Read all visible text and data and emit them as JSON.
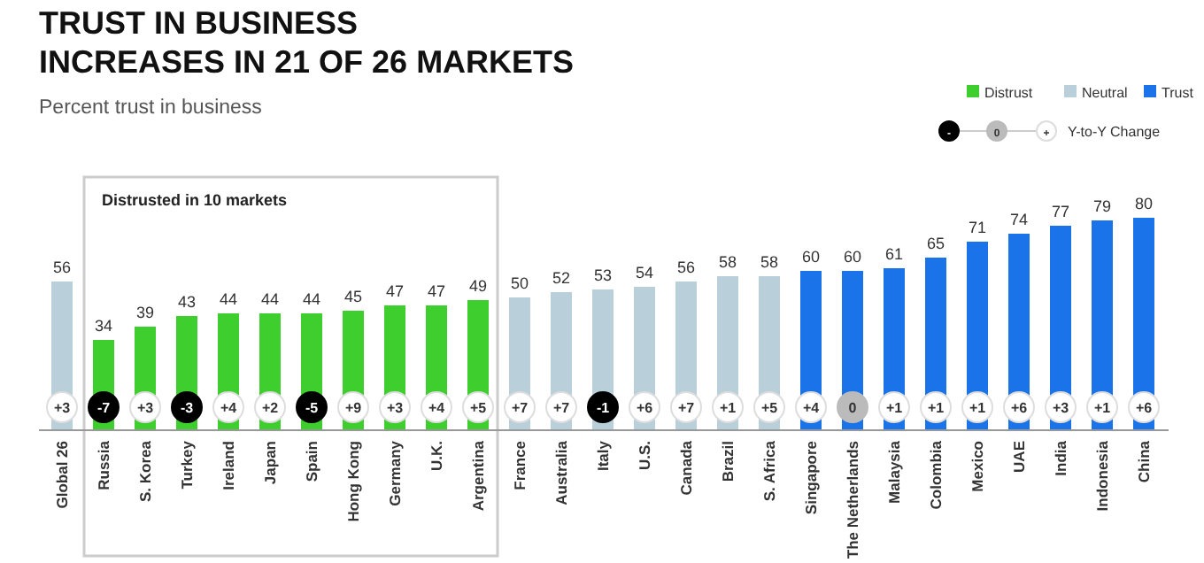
{
  "chart_data": {
    "type": "bar",
    "title": "TRUST IN BUSINESS\nINCREASES IN 21 OF 26 MARKETS",
    "subtitle": "Percent trust in business",
    "categories": [
      "Global 26",
      "Russia",
      "S. Korea",
      "Turkey",
      "Ireland",
      "Japan",
      "Spain",
      "Hong Kong",
      "Germany",
      "U.K.",
      "Argentina",
      "France",
      "Australia",
      "Italy",
      "U.S.",
      "Canada",
      "Brazil",
      "S. Africa",
      "Singapore",
      "The Netherlands",
      "Malaysia",
      "Colombia",
      "Mexico",
      "UAE",
      "India",
      "Indonesia",
      "China"
    ],
    "data_labels": true,
    "legend": "top right",
    "series": [
      {
        "name": "Distrust",
        "color": "#3ecf2e",
        "values": [
          null,
          34,
          39,
          43,
          44,
          44,
          44,
          45,
          47,
          47,
          49,
          null,
          null,
          null,
          null,
          null,
          null,
          null,
          null,
          null,
          null,
          null,
          null,
          null,
          null,
          null,
          null
        ]
      },
      {
        "name": "Neutral",
        "color": "#b9d0da",
        "values": [
          56,
          null,
          null,
          null,
          null,
          null,
          null,
          null,
          null,
          null,
          null,
          50,
          52,
          53,
          54,
          56,
          58,
          58,
          null,
          null,
          null,
          null,
          null,
          null,
          null,
          null,
          null
        ]
      },
      {
        "name": "Trust",
        "color": "#1a73e8",
        "values": [
          null,
          null,
          null,
          null,
          null,
          null,
          null,
          null,
          null,
          null,
          null,
          null,
          null,
          null,
          null,
          null,
          null,
          null,
          60,
          60,
          61,
          65,
          71,
          74,
          77,
          79,
          80
        ]
      }
    ],
    "annotations": [
      "Distrusted in 10 markets",
      "-",
      "0",
      "+",
      "Y-to-Y Change",
      {
        "text": "+3",
        "x": "Global 26"
      },
      {
        "text": "-7",
        "x": "Russia"
      },
      {
        "text": "+3",
        "x": "S. Korea"
      },
      {
        "text": "-3",
        "x": "Turkey"
      },
      {
        "text": "+4",
        "x": "Ireland"
      },
      {
        "text": "+2",
        "x": "Japan"
      },
      {
        "text": "-5",
        "x": "Spain"
      },
      {
        "text": "+9",
        "x": "Hong Kong"
      },
      {
        "text": "+3",
        "x": "Germany"
      },
      {
        "text": "+4",
        "x": "U.K."
      },
      {
        "text": "+5",
        "x": "Argentina"
      },
      {
        "text": "+7",
        "x": "France"
      },
      {
        "text": "+7",
        "x": "Australia"
      },
      {
        "text": "-1",
        "x": "Italy"
      },
      {
        "text": "+6",
        "x": "U.S."
      },
      {
        "text": "+7",
        "x": "Canada"
      },
      {
        "text": "+1",
        "x": "Brazil"
      },
      {
        "text": "+5",
        "x": "S. Africa"
      },
      {
        "text": "+4",
        "x": "Singapore"
      },
      {
        "text": "0",
        "x": "The Netherlands"
      },
      {
        "text": "+1",
        "x": "Malaysia"
      },
      {
        "text": "+1",
        "x": "Colombia"
      },
      {
        "text": "+1",
        "x": "Mexico"
      },
      {
        "text": "+6",
        "x": "UAE"
      },
      {
        "text": "+3",
        "x": "India"
      },
      {
        "text": "+1",
        "x": "Indonesia"
      },
      {
        "text": "+6",
        "x": "China"
      }
    ]
  }
}
